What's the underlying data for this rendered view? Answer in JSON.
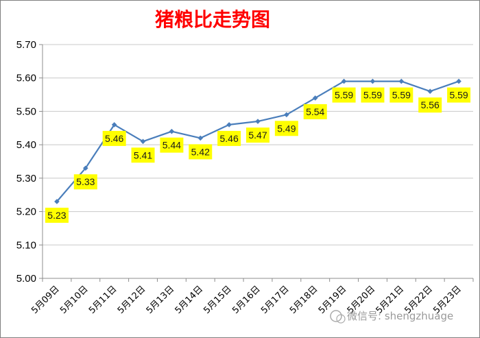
{
  "chart_data": {
    "type": "line",
    "title": "猪粮比走势图",
    "categories": [
      "5月09日",
      "5月10日",
      "5月11日",
      "5月12日",
      "5月13日",
      "5月14日",
      "5月15日",
      "5月16日",
      "5月17日",
      "5月18日",
      "5月19日",
      "5月20日",
      "5月21日",
      "5月22日",
      "5月23日"
    ],
    "series": [
      {
        "values": [
          5.23,
          5.33,
          5.46,
          5.41,
          5.44,
          5.42,
          5.46,
          5.47,
          5.49,
          5.54,
          5.59,
          5.59,
          5.59,
          5.56,
          5.59
        ]
      }
    ],
    "ylim": [
      5.0,
      5.7
    ],
    "yticks": [
      "5.00",
      "5.10",
      "5.20",
      "5.30",
      "5.40",
      "5.50",
      "5.60",
      "5.70"
    ],
    "data_labels": true,
    "grid": true,
    "legend": "none"
  },
  "colors": {
    "title": "#FF0000",
    "line": "#4A7EBB",
    "grid": "#C8C8C8",
    "axis": "#8C8C8C",
    "label_bg": "#FFFF00",
    "frame": "#7F7F7F"
  },
  "watermark": "微信号: shengzhuage"
}
